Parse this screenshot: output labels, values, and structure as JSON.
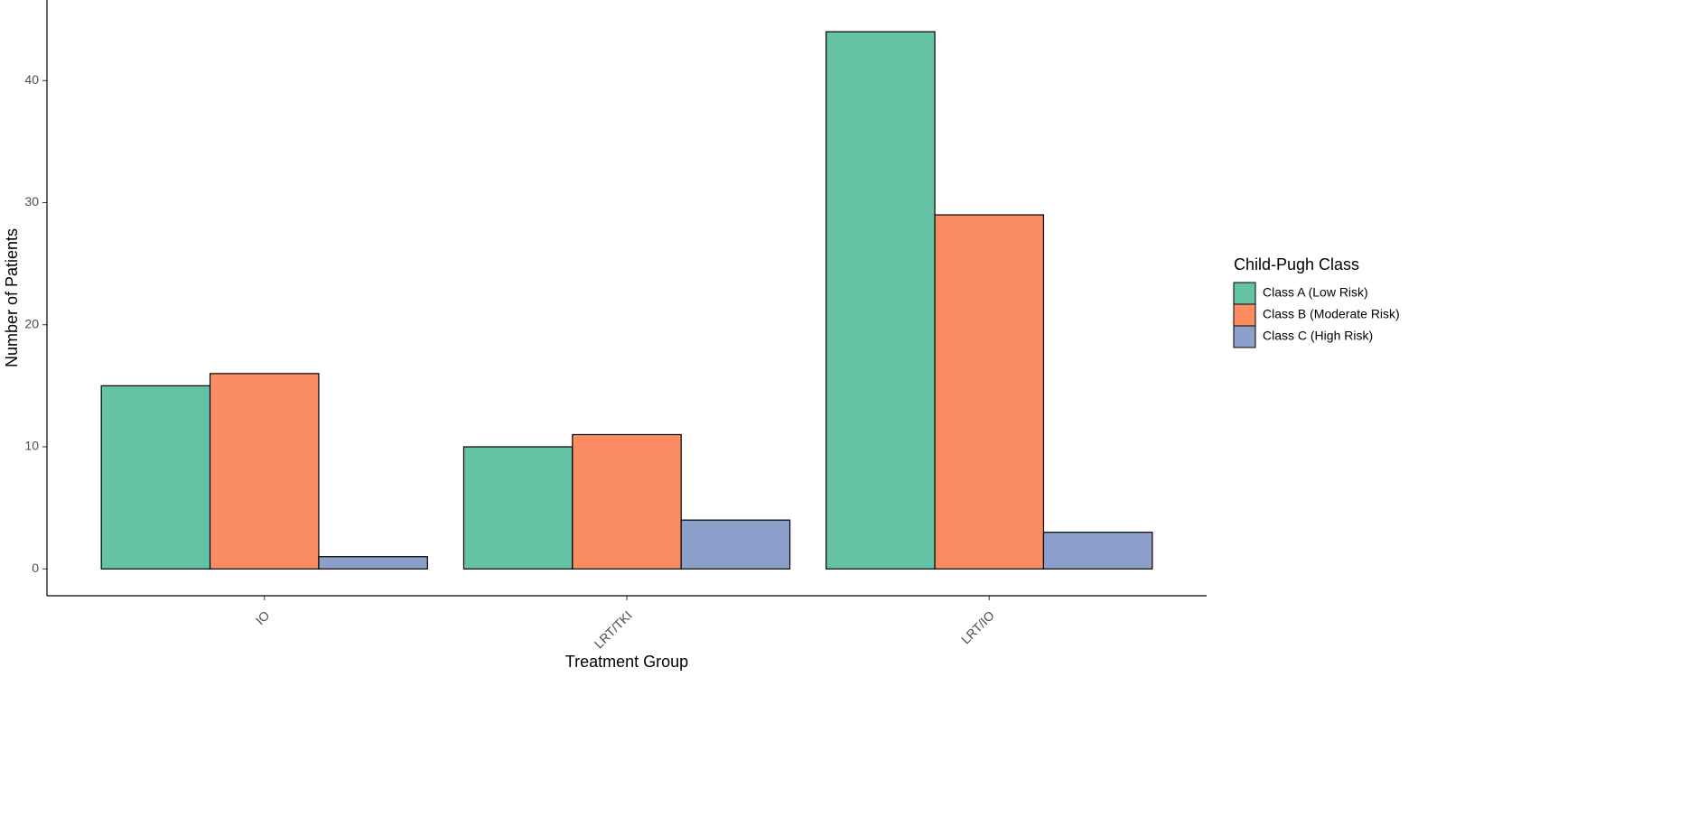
{
  "chart_data": {
    "type": "bar",
    "x_label": "Treatment Group",
    "y_label": "Number of Patients",
    "categories": [
      "IO",
      "LRT/TKI",
      "LRT/IO"
    ],
    "series": [
      {
        "name": "Class A (Low Risk)",
        "color": "#66c2a5",
        "values": [
          15,
          10,
          44
        ]
      },
      {
        "name": "Class B (Moderate Risk)",
        "color": "#fc8d62",
        "values": [
          16,
          11,
          29
        ]
      },
      {
        "name": "Class C (High Risk)",
        "color": "#8da0cb",
        "values": [
          1,
          4,
          3
        ]
      }
    ],
    "ylim": [
      -2.2,
      46.6
    ],
    "yticks": [
      0,
      10,
      20,
      30,
      40
    ],
    "legend_title": "Child-Pugh Class",
    "legend": "right",
    "grid": false
  }
}
